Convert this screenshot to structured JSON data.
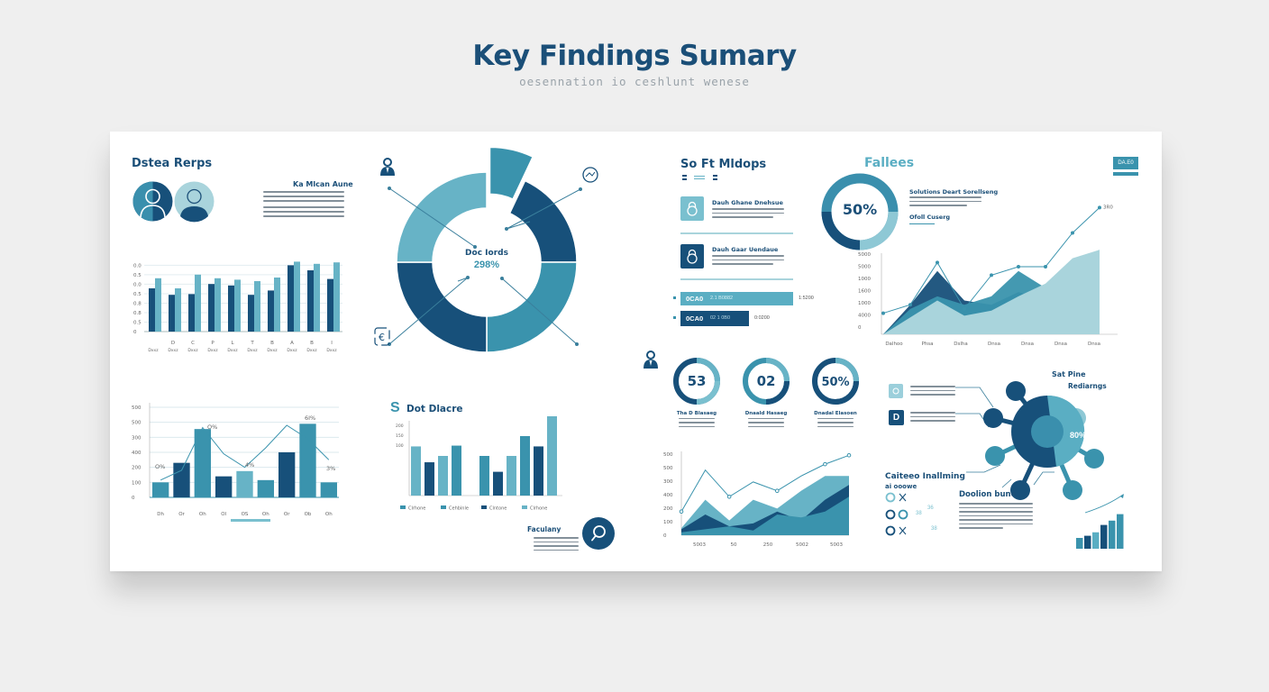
{
  "header": {
    "title": "Key Findings Sumary",
    "subtitle": "oesennation io ceshlunt wenese"
  },
  "colors": {
    "dark": "#17507a",
    "mid": "#3a93ad",
    "light": "#67b3c6",
    "pale": "#a9d4dc",
    "background": "#efefef",
    "card": "#ffffff"
  },
  "panels": {
    "data_reps": {
      "title": "Dstea Rerps",
      "text_heading": "Ka Mlcan Aune"
    },
    "donut": {
      "center_label": "Doc Iords",
      "center_value": "298%"
    },
    "line_bar": {},
    "dot_macre": {
      "title": "Dot Dlacre",
      "legend": [
        "Clrhone",
        "Cehbinle",
        "Clntone",
        "Clrhone"
      ],
      "findings_label": "Faculany"
    },
    "soft_mldops": {
      "title": "So Ft Mldops",
      "items": [
        {
          "heading": "Dauh Ghane Dnehsue"
        },
        {
          "heading": "Dauh Gaar Uendaue"
        }
      ],
      "bars": [
        {
          "label": "0CA0",
          "sub": "2.1 B0882",
          "right": "1:5200",
          "width_pct": 100
        },
        {
          "label": "0CA0",
          "sub": "02 1 0B0",
          "right": "0:0200",
          "width_pct": 56
        }
      ]
    },
    "falloes": {
      "title": "Fallees",
      "donut_value": "50%",
      "text_heading": "Solutions Deart Sorellseng",
      "link_label": "Ofoll Cuserg",
      "badge": "DA.E0",
      "point_label": "3R0"
    },
    "kpis": [
      {
        "value": "53",
        "label": "Tha D Blasaeg"
      },
      {
        "value": "02",
        "label": "Dnaald Hasaeg"
      },
      {
        "value": "50%",
        "label": "Dnadal Elasoen"
      }
    ],
    "network": {
      "title_line1": "Sat Pine",
      "title_line2": "Rediarngs",
      "center_value": "80%",
      "checklist_title": "Caiteeo Inallming",
      "checklist_subtitle": "ai ooowe",
      "checklist_pcts": [
        "38",
        "36",
        "38"
      ],
      "decision_title": "Doolion bune"
    }
  },
  "chart_data": [
    {
      "id": "grouped-bar",
      "type": "bar",
      "title": "Dstea Rerps",
      "categories": [
        "",
        "D",
        "C",
        "P",
        "L",
        "T",
        "B",
        "A",
        "B",
        "I"
      ],
      "series": [
        {
          "name": "dark",
          "values": [
            60,
            51,
            52,
            66,
            64,
            51,
            57,
            92,
            85,
            73
          ]
        },
        {
          "name": "light",
          "values": [
            74,
            60,
            79,
            74,
            72,
            70,
            75,
            97,
            94,
            96
          ]
        }
      ],
      "yticks": [
        "0",
        "0.5",
        "0.8",
        "0.8",
        "0.5",
        "0.0",
        "0.5",
        "0.0"
      ],
      "ylim": [
        0,
        100
      ]
    },
    {
      "id": "donut",
      "type": "pie",
      "title": "Doc Iords",
      "center_value": "298%",
      "slices": [
        {
          "name": "exploded",
          "value": 7,
          "color": "#3a93ad"
        },
        {
          "name": "dark-top",
          "value": 18,
          "color": "#17507a"
        },
        {
          "name": "mid-right",
          "value": 25,
          "color": "#3a93ad"
        },
        {
          "name": "dark-bottom",
          "value": 25,
          "color": "#17507a"
        },
        {
          "name": "light-left",
          "value": 25,
          "color": "#67b3c6"
        }
      ]
    },
    {
      "id": "bar-line-combo",
      "type": "bar",
      "categories": [
        "Dh",
        "Or",
        "Oh",
        "Ol",
        "OS",
        "Oh",
        "Or",
        "Ob",
        "Oh"
      ],
      "values": [
        100,
        230,
        455,
        140,
        175,
        115,
        300,
        490,
        100
      ],
      "line": [
        115,
        180,
        465,
        290,
        200,
        330,
        480,
        390,
        250
      ],
      "annotations": [
        "O%",
        "O%",
        "4%",
        "6I%",
        "3%"
      ],
      "yticks": [
        "0",
        "100",
        "200",
        "400",
        "300",
        "500",
        "500"
      ],
      "ylim": [
        0,
        600
      ]
    },
    {
      "id": "dot-macre-bar",
      "type": "bar",
      "title": "Dot Dlacre",
      "categories": [
        "g1a",
        "g1b",
        "g1c",
        "g1d",
        "g2a",
        "g2b",
        "g2c",
        "g2d",
        "g2e",
        "g2f"
      ],
      "values": [
        62,
        42,
        50,
        63,
        50,
        30,
        50,
        75,
        62,
        100
      ],
      "yticks": [
        "",
        "",
        "",
        "100",
        "150",
        "200"
      ],
      "ylim": [
        0,
        100
      ]
    },
    {
      "id": "falloes-area",
      "type": "area",
      "xlabels": [
        "Dalhoo",
        "Phsa",
        "Dslha",
        "Dnsa",
        "Dnsa",
        "Dnsa",
        "Dnsa"
      ],
      "yticks": [
        "0",
        "4000",
        "1000",
        "1600",
        "1000",
        "5000",
        "5000"
      ],
      "series": [
        {
          "name": "pale",
          "values": [
            0,
            20,
            40,
            22,
            28,
            45,
            60,
            90,
            100
          ]
        },
        {
          "name": "mid",
          "values": [
            0,
            30,
            45,
            35,
            45,
            75,
            55,
            85,
            100
          ]
        },
        {
          "name": "dark",
          "values": [
            0,
            35,
            75,
            40,
            35,
            50,
            40,
            50,
            60
          ]
        },
        {
          "name": "line",
          "values": [
            25,
            35,
            85,
            30,
            70,
            80,
            80,
            120,
            150
          ]
        }
      ]
    },
    {
      "id": "kpi-rings",
      "type": "pie",
      "values": [
        53,
        2,
        50
      ]
    },
    {
      "id": "stacked-area",
      "type": "area",
      "xlabels": [
        "5003",
        "50",
        "250",
        "5002",
        "5003"
      ],
      "yticks": [
        "0",
        "100",
        "200",
        "400",
        "300",
        "500",
        "500"
      ],
      "series": [
        {
          "name": "base",
          "values": [
            5,
            10,
            15,
            8,
            35,
            30,
            40,
            65
          ]
        },
        {
          "name": "dark",
          "values": [
            10,
            35,
            15,
            20,
            40,
            25,
            60,
            85
          ]
        },
        {
          "name": "mid",
          "values": [
            12,
            60,
            25,
            60,
            45,
            75,
            100,
            100
          ]
        },
        {
          "name": "line",
          "values": [
            40,
            110,
            65,
            90,
            75,
            100,
            120,
            135
          ]
        }
      ]
    },
    {
      "id": "mini-growth",
      "type": "bar",
      "values": [
        25,
        30,
        38,
        55,
        65,
        80
      ]
    }
  ]
}
